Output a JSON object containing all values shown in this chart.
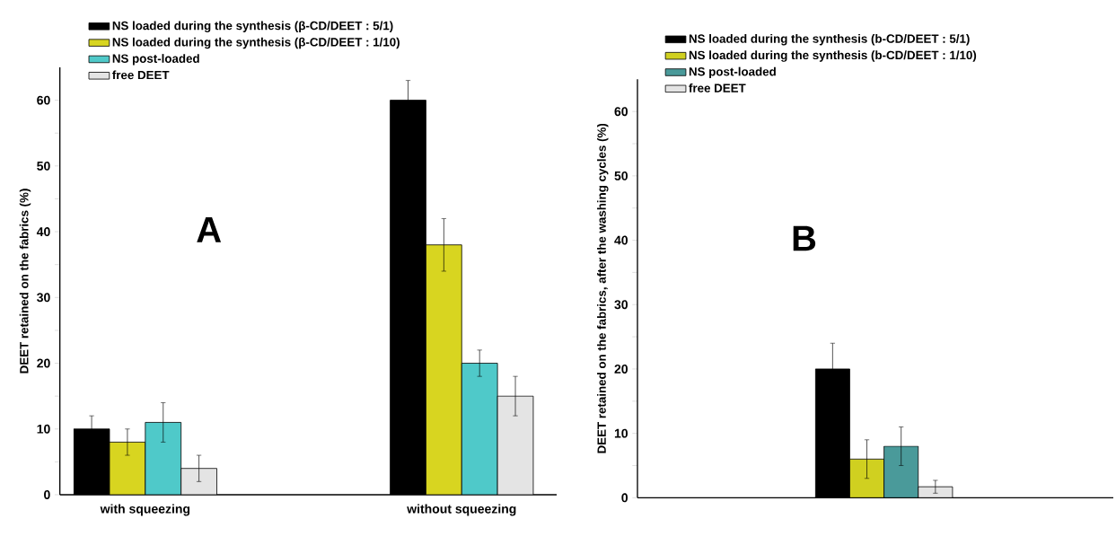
{
  "chart_data": [
    {
      "type": "bar",
      "ylabel": "DEET retained on the fabrics (%)",
      "categories": [
        "with squeezing",
        "without squeezing"
      ],
      "ylim": [
        0,
        65
      ],
      "yticks": [
        0,
        {
          "value": 5,
          "label": null
        },
        10,
        {
          "value": 15,
          "label": null
        },
        20,
        {
          "value": 25,
          "label": null
        },
        30,
        {
          "value": 35,
          "label": null
        },
        40,
        {
          "value": 45,
          "label": null
        },
        50,
        {
          "value": 55,
          "label": null
        },
        60
      ],
      "legend": "top left",
      "annotations": [
        "A"
      ],
      "series": [
        {
          "name": "NS loaded during the synthesis (β-CD/DEET : 5/1)",
          "color": "#000000",
          "values": [
            10,
            60
          ],
          "errors": [
            2,
            3
          ]
        },
        {
          "name": "NS loaded during the synthesis (β-CD/DEET : 1/10)",
          "color": "#d8d520",
          "values": [
            8,
            38
          ],
          "errors": [
            2,
            4
          ]
        },
        {
          "name": "NS post-loaded",
          "color": "#4fc9c9",
          "values": [
            11,
            20
          ],
          "errors": [
            3,
            2
          ]
        },
        {
          "name": "free DEET",
          "color": "#e4e4e4",
          "values": [
            4,
            15
          ],
          "errors": [
            2,
            3
          ]
        }
      ]
    },
    {
      "type": "bar",
      "ylabel": "DEET retained on the fabrics, after the washing cycles (%)",
      "categories": [
        null
      ],
      "ylim": [
        0,
        65
      ],
      "yticks": [
        0,
        {
          "value": 5,
          "label": null
        },
        10,
        {
          "value": 15,
          "label": null
        },
        20,
        {
          "value": 25,
          "label": null
        },
        30,
        {
          "value": 35,
          "label": null
        },
        40,
        {
          "value": 45,
          "label": null
        },
        50,
        {
          "value": 55,
          "label": null
        },
        60
      ],
      "legend": "top left",
      "annotations": [
        "B"
      ],
      "series": [
        {
          "name": "NS loaded during the synthesis (b-CD/DEET : 5/1)",
          "color": "#000000",
          "values": [
            20
          ],
          "errors": [
            4
          ]
        },
        {
          "name": "NS loaded during the synthesis (b-CD/DEET : 1/10)",
          "color": "#d0d020",
          "values": [
            6
          ],
          "errors": [
            3
          ]
        },
        {
          "name": "NS post-loaded",
          "color": "#4a9a9a",
          "values": [
            8
          ],
          "errors": [
            3
          ]
        },
        {
          "name": "free DEET",
          "color": "#e4e4e4",
          "values": [
            1.7
          ],
          "errors": [
            1
          ]
        }
      ]
    }
  ]
}
